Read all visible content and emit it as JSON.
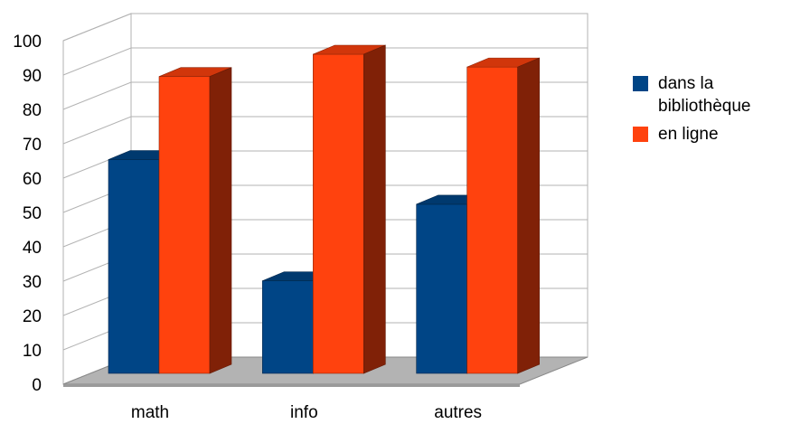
{
  "chart_data": {
    "type": "bar",
    "categories": [
      "math",
      "info",
      "autres"
    ],
    "series": [
      {
        "name": "dans la bibliothèque",
        "values": [
          67,
          29,
          53
        ],
        "color": "#004586"
      },
      {
        "name": "en ligne",
        "values": [
          93,
          100,
          96
        ],
        "color": "#FF420E"
      }
    ],
    "ylim": [
      0,
      100
    ],
    "yticks": [
      "0",
      "10",
      "20",
      "30",
      "40",
      "50",
      "60",
      "70",
      "80",
      "90",
      "100"
    ],
    "grid": true,
    "legend_position": "right",
    "style": "3d"
  }
}
